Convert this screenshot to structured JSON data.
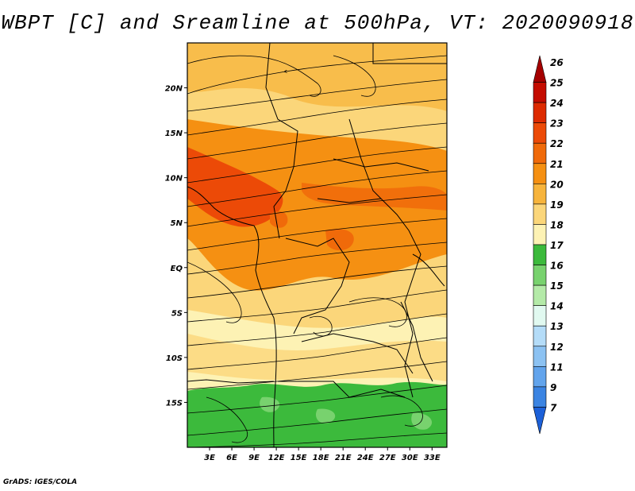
{
  "title": "WBPT [C] and Sreamline at 500hPa, VT: 2020090918",
  "credit": "GrADS: IGES/COLA",
  "map": {
    "lon_range": [
      0,
      35
    ],
    "lat_range": [
      -20,
      25
    ],
    "lon_ticks": [
      {
        "value": 3,
        "label": "3E"
      },
      {
        "value": 6,
        "label": "6E"
      },
      {
        "value": 9,
        "label": "9E"
      },
      {
        "value": 12,
        "label": "12E"
      },
      {
        "value": 15,
        "label": "15E"
      },
      {
        "value": 18,
        "label": "18E"
      },
      {
        "value": 21,
        "label": "21E"
      },
      {
        "value": 24,
        "label": "24E"
      },
      {
        "value": 27,
        "label": "27E"
      },
      {
        "value": 30,
        "label": "30E"
      },
      {
        "value": 33,
        "label": "33E"
      }
    ],
    "lat_ticks": [
      {
        "value": 20,
        "label": "20N"
      },
      {
        "value": 15,
        "label": "15N"
      },
      {
        "value": 10,
        "label": "10N"
      },
      {
        "value": 5,
        "label": "5N"
      },
      {
        "value": 0,
        "label": "EQ"
      },
      {
        "value": -5,
        "label": "5S"
      },
      {
        "value": -10,
        "label": "10S"
      },
      {
        "value": -15,
        "label": "15S"
      }
    ]
  },
  "colorbar": {
    "levels": [
      {
        "label": "26",
        "color": "#a50000"
      },
      {
        "label": "25",
        "color": "#c40c00"
      },
      {
        "label": "24",
        "color": "#dd2a00"
      },
      {
        "label": "23",
        "color": "#ec4a07"
      },
      {
        "label": "22",
        "color": "#f06a0a"
      },
      {
        "label": "21",
        "color": "#f59012"
      },
      {
        "label": "20",
        "color": "#f7b43c"
      },
      {
        "label": "19",
        "color": "#fbd67a"
      },
      {
        "label": "18",
        "color": "#fdf2b4"
      },
      {
        "label": "17",
        "color": "#3cba3c"
      },
      {
        "label": "16",
        "color": "#78d26e"
      },
      {
        "label": "15",
        "color": "#b4eaa8"
      },
      {
        "label": "14",
        "color": "#e1f9f0"
      },
      {
        "label": "13",
        "color": "#b4dcf8"
      },
      {
        "label": "12",
        "color": "#8cc2f2"
      },
      {
        "label": "11",
        "color": "#62a4ec"
      },
      {
        "label": "9",
        "color": "#3b84e2"
      },
      {
        "label": "7",
        "color": "#1c60d8"
      }
    ]
  }
}
